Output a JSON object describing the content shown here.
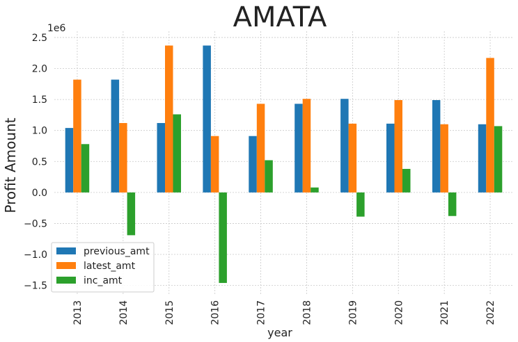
{
  "chart_data": {
    "type": "bar",
    "title": "AMATA",
    "xlabel": "year",
    "ylabel": "Profit Amount",
    "y_multiplier_label": "1e6",
    "categories": [
      "2013",
      "2014",
      "2015",
      "2016",
      "2017",
      "2018",
      "2019",
      "2020",
      "2021",
      "2022"
    ],
    "series": [
      {
        "name": "previous_amt",
        "color": "#1f77b4",
        "values": [
          1040000,
          1820000,
          1120000,
          2370000,
          910000,
          1430000,
          1510000,
          1110000,
          1490000,
          1100000
        ]
      },
      {
        "name": "latest_amt",
        "color": "#ff7f0e",
        "values": [
          1820000,
          1120000,
          2370000,
          910000,
          1430000,
          1510000,
          1110000,
          1490000,
          1100000,
          2170000
        ]
      },
      {
        "name": "inc_amt",
        "color": "#2ca02c",
        "values": [
          780000,
          -690000,
          1260000,
          -1460000,
          520000,
          80000,
          -390000,
          380000,
          -380000,
          1070000
        ]
      }
    ],
    "ylim": [
      -1.65,
      2.6
    ],
    "yticks": [
      -1.5,
      -1.0,
      -0.5,
      0.0,
      0.5,
      1.0,
      1.5,
      2.0,
      2.5
    ],
    "ytick_labels": [
      "−1.5",
      "−1.0",
      "−0.5",
      "0.0",
      "0.5",
      "1.0",
      "1.5",
      "2.0",
      "2.5"
    ],
    "grid": true,
    "legend_position": "lower-left"
  }
}
